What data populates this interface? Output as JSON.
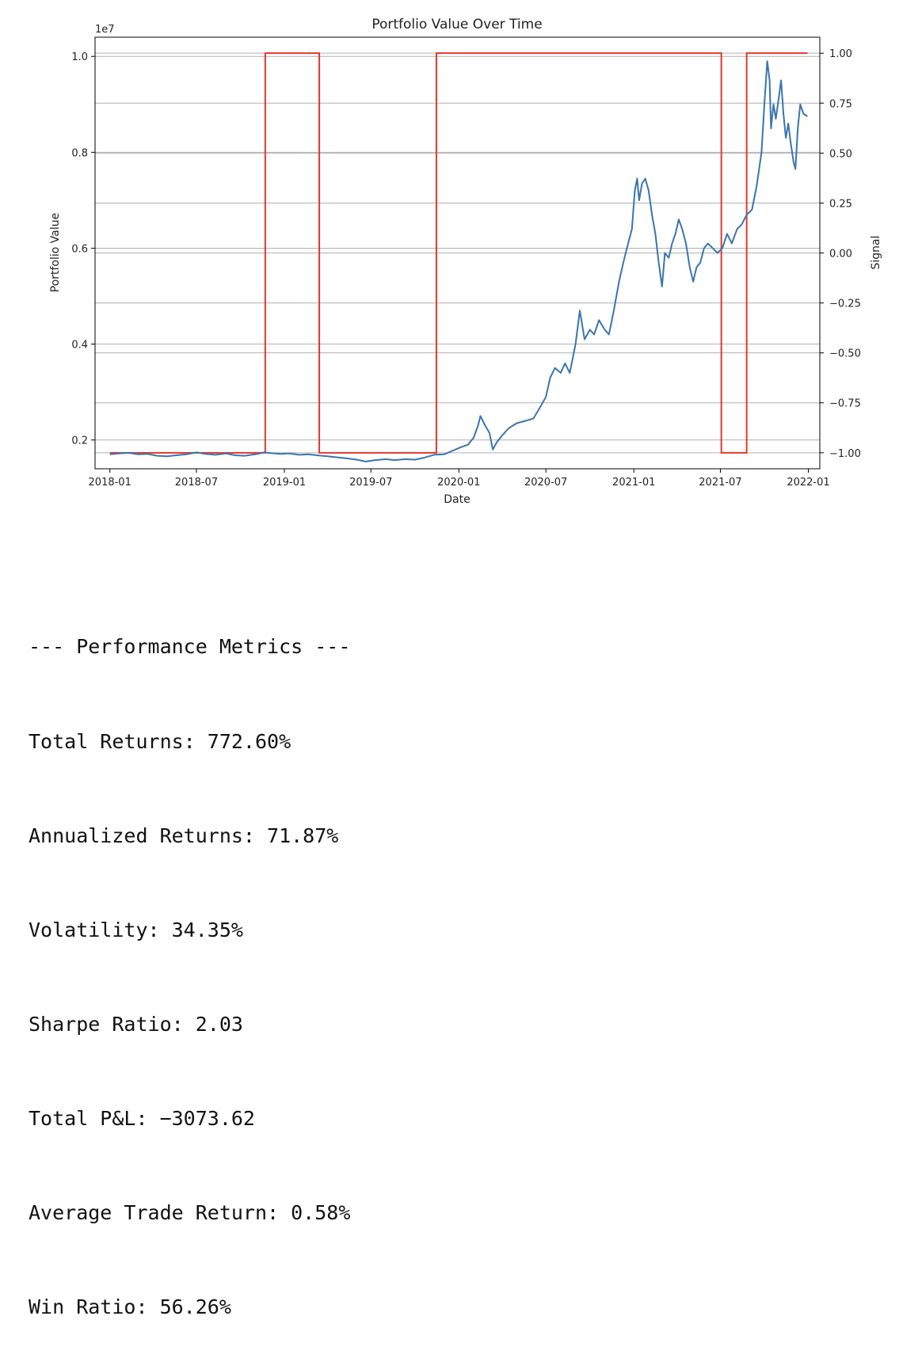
{
  "chart_data": {
    "type": "line",
    "title": "Portfolio Value Over Time",
    "xlabel": "Date",
    "ylabel": "Portfolio Value",
    "y2label": "Signal",
    "y_offset_label": "1e7",
    "xlim": [
      "2017-12-01",
      "2022-01-25"
    ],
    "ylim": [
      0.14,
      1.04
    ],
    "y2lim": [
      -1.08,
      1.08
    ],
    "x_ticks": [
      "2018-01",
      "2018-07",
      "2019-01",
      "2019-07",
      "2020-01",
      "2020-07",
      "2021-01",
      "2021-07",
      "2022-01"
    ],
    "x_tick_dates": [
      "2018-01-01",
      "2018-07-01",
      "2019-01-01",
      "2019-07-01",
      "2020-01-01",
      "2020-07-01",
      "2021-01-01",
      "2021-07-01",
      "2022-01-01"
    ],
    "y_ticks": [
      "0.2",
      "0.4",
      "0.6",
      "0.8",
      "1.0"
    ],
    "y_tick_values": [
      0.2,
      0.4,
      0.6,
      0.8,
      1.0
    ],
    "y2_ticks": [
      "−1.00",
      "−0.75",
      "−0.50",
      "−0.25",
      "0.00",
      "0.25",
      "0.50",
      "0.75",
      "1.00"
    ],
    "y2_tick_values": [
      -1.0,
      -0.75,
      -0.5,
      -0.25,
      0.0,
      0.25,
      0.5,
      0.75,
      1.0
    ],
    "grid": true,
    "series": [
      {
        "color": "#3a75ae",
        "axis": "left",
        "points": [
          [
            "2018-01-01",
            0.17
          ],
          [
            "2018-01-20",
            0.172
          ],
          [
            "2018-02-10",
            0.173
          ],
          [
            "2018-03-01",
            0.17
          ],
          [
            "2018-03-20",
            0.171
          ],
          [
            "2018-04-10",
            0.167
          ],
          [
            "2018-05-01",
            0.166
          ],
          [
            "2018-05-20",
            0.168
          ],
          [
            "2018-06-10",
            0.17
          ],
          [
            "2018-07-01",
            0.174
          ],
          [
            "2018-07-20",
            0.171
          ],
          [
            "2018-08-10",
            0.169
          ],
          [
            "2018-09-01",
            0.172
          ],
          [
            "2018-09-20",
            0.168
          ],
          [
            "2018-10-10",
            0.167
          ],
          [
            "2018-11-01",
            0.17
          ],
          [
            "2018-11-20",
            0.174
          ],
          [
            "2018-12-10",
            0.172
          ],
          [
            "2018-12-25",
            0.171
          ],
          [
            "2019-01-10",
            0.172
          ],
          [
            "2019-02-01",
            0.169
          ],
          [
            "2019-02-20",
            0.17
          ],
          [
            "2019-03-10",
            0.168
          ],
          [
            "2019-04-01",
            0.166
          ],
          [
            "2019-04-20",
            0.164
          ],
          [
            "2019-05-10",
            0.162
          ],
          [
            "2019-06-01",
            0.159
          ],
          [
            "2019-06-20",
            0.155
          ],
          [
            "2019-07-10",
            0.158
          ],
          [
            "2019-08-01",
            0.16
          ],
          [
            "2019-08-20",
            0.158
          ],
          [
            "2019-09-10",
            0.16
          ],
          [
            "2019-10-01",
            0.159
          ],
          [
            "2019-10-20",
            0.163
          ],
          [
            "2019-11-10",
            0.169
          ],
          [
            "2019-12-01",
            0.17
          ],
          [
            "2019-12-20",
            0.178
          ],
          [
            "2020-01-05",
            0.185
          ],
          [
            "2020-01-20",
            0.19
          ],
          [
            "2020-02-01",
            0.205
          ],
          [
            "2020-02-10",
            0.23
          ],
          [
            "2020-02-15",
            0.25
          ],
          [
            "2020-02-25",
            0.23
          ],
          [
            "2020-03-05",
            0.215
          ],
          [
            "2020-03-12",
            0.18
          ],
          [
            "2020-03-20",
            0.195
          ],
          [
            "2020-04-01",
            0.21
          ],
          [
            "2020-04-15",
            0.225
          ],
          [
            "2020-05-01",
            0.235
          ],
          [
            "2020-05-20",
            0.24
          ],
          [
            "2020-06-05",
            0.245
          ],
          [
            "2020-06-20",
            0.27
          ],
          [
            "2020-07-01",
            0.29
          ],
          [
            "2020-07-10",
            0.33
          ],
          [
            "2020-07-20",
            0.35
          ],
          [
            "2020-08-01",
            0.34
          ],
          [
            "2020-08-10",
            0.36
          ],
          [
            "2020-08-20",
            0.34
          ],
          [
            "2020-09-01",
            0.4
          ],
          [
            "2020-09-10",
            0.47
          ],
          [
            "2020-09-20",
            0.41
          ],
          [
            "2020-10-01",
            0.43
          ],
          [
            "2020-10-10",
            0.42
          ],
          [
            "2020-10-20",
            0.45
          ],
          [
            "2020-11-01",
            0.43
          ],
          [
            "2020-11-10",
            0.42
          ],
          [
            "2020-11-20",
            0.47
          ],
          [
            "2020-12-01",
            0.53
          ],
          [
            "2020-12-10",
            0.57
          ],
          [
            "2020-12-20",
            0.61
          ],
          [
            "2020-12-28",
            0.64
          ],
          [
            "2021-01-03",
            0.72
          ],
          [
            "2021-01-08",
            0.745
          ],
          [
            "2021-01-12",
            0.7
          ],
          [
            "2021-01-18",
            0.735
          ],
          [
            "2021-01-25",
            0.745
          ],
          [
            "2021-02-01",
            0.72
          ],
          [
            "2021-02-08",
            0.67
          ],
          [
            "2021-02-15",
            0.63
          ],
          [
            "2021-02-22",
            0.57
          ],
          [
            "2021-03-01",
            0.52
          ],
          [
            "2021-03-07",
            0.59
          ],
          [
            "2021-03-15",
            0.58
          ],
          [
            "2021-03-22",
            0.61
          ],
          [
            "2021-03-29",
            0.63
          ],
          [
            "2021-04-05",
            0.66
          ],
          [
            "2021-04-12",
            0.64
          ],
          [
            "2021-04-20",
            0.61
          ],
          [
            "2021-04-28",
            0.56
          ],
          [
            "2021-05-05",
            0.53
          ],
          [
            "2021-05-12",
            0.56
          ],
          [
            "2021-05-20",
            0.57
          ],
          [
            "2021-05-28",
            0.6
          ],
          [
            "2021-06-05",
            0.61
          ],
          [
            "2021-06-15",
            0.6
          ],
          [
            "2021-06-25",
            0.59
          ],
          [
            "2021-07-05",
            0.6
          ],
          [
            "2021-07-15",
            0.63
          ],
          [
            "2021-07-25",
            0.61
          ],
          [
            "2021-08-05",
            0.64
          ],
          [
            "2021-08-15",
            0.65
          ],
          [
            "2021-08-25",
            0.67
          ],
          [
            "2021-09-05",
            0.68
          ],
          [
            "2021-09-15",
            0.73
          ],
          [
            "2021-09-25",
            0.8
          ],
          [
            "2021-10-01",
            0.9
          ],
          [
            "2021-10-07",
            0.99
          ],
          [
            "2021-10-12",
            0.95
          ],
          [
            "2021-10-15",
            0.85
          ],
          [
            "2021-10-20",
            0.9
          ],
          [
            "2021-10-25",
            0.87
          ],
          [
            "2021-11-01",
            0.92
          ],
          [
            "2021-11-05",
            0.95
          ],
          [
            "2021-11-10",
            0.88
          ],
          [
            "2021-11-15",
            0.83
          ],
          [
            "2021-11-20",
            0.86
          ],
          [
            "2021-11-25",
            0.82
          ],
          [
            "2021-12-01",
            0.78
          ],
          [
            "2021-12-05",
            0.765
          ],
          [
            "2021-12-10",
            0.85
          ],
          [
            "2021-12-15",
            0.9
          ],
          [
            "2021-12-22",
            0.88
          ],
          [
            "2021-12-30",
            0.875
          ]
        ]
      },
      {
        "color": "#e0392d",
        "axis": "right",
        "step_changes": [
          [
            "2018-01-01",
            -1
          ],
          [
            "2018-11-22",
            1
          ],
          [
            "2019-03-15",
            -1
          ],
          [
            "2019-11-15",
            1
          ],
          [
            "2021-07-03",
            -1
          ],
          [
            "2021-08-25",
            1
          ],
          [
            "2021-12-30",
            1
          ]
        ]
      }
    ]
  },
  "metrics": {
    "header": "--- Performance Metrics ---",
    "lines": [
      "Total Returns: 772.60%",
      "Annualized Returns: 71.87%",
      "Volatility: 34.35%",
      "Sharpe Ratio: 2.03",
      "Total P&L: −3073.62",
      "Average Trade Return: 0.58%",
      "Win Ratio: 56.26%"
    ]
  }
}
